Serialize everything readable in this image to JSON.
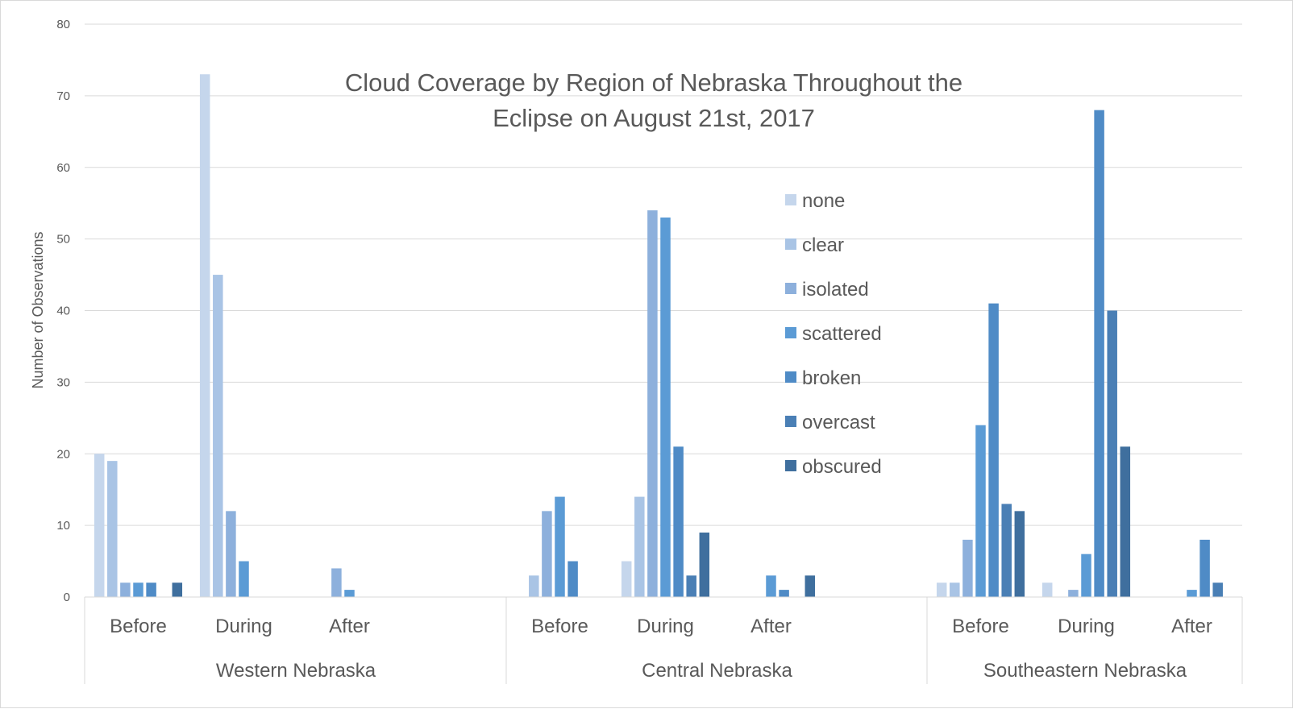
{
  "chart_data": {
    "type": "bar",
    "title_lines": [
      "Cloud Coverage by Region of Nebraska Throughout the",
      "Eclipse on August 21st, 2017"
    ],
    "ylabel": "Number of Observations",
    "xlabel": "",
    "ylim": [
      0,
      80
    ],
    "yticks": [
      0,
      10,
      20,
      30,
      40,
      50,
      60,
      70,
      80
    ],
    "grid": true,
    "legend_position": "center",
    "groups": [
      "Western Nebraska",
      "Central Nebraska",
      "Southeastern Nebraska"
    ],
    "subcategories": [
      "Before",
      "During",
      "After"
    ],
    "series": [
      {
        "name": "none",
        "color": "#c5d6ec",
        "values": [
          [
            20,
            73,
            0
          ],
          [
            0,
            5,
            0
          ],
          [
            2,
            2,
            0
          ]
        ]
      },
      {
        "name": "clear",
        "color": "#a9c4e5",
        "values": [
          [
            19,
            45,
            0
          ],
          [
            3,
            14,
            0
          ],
          [
            2,
            0,
            0
          ]
        ]
      },
      {
        "name": "isolated",
        "color": "#8db0dc",
        "values": [
          [
            2,
            12,
            4
          ],
          [
            12,
            54,
            0
          ],
          [
            8,
            1,
            0
          ]
        ]
      },
      {
        "name": "scattered",
        "color": "#5b9bd5",
        "values": [
          [
            2,
            5,
            1
          ],
          [
            14,
            53,
            3
          ],
          [
            24,
            6,
            1
          ]
        ]
      },
      {
        "name": "broken",
        "color": "#4f8bc6",
        "values": [
          [
            2,
            0,
            0
          ],
          [
            5,
            21,
            1
          ],
          [
            41,
            68,
            8
          ]
        ]
      },
      {
        "name": "overcast",
        "color": "#4a7fb5",
        "values": [
          [
            0,
            0,
            0
          ],
          [
            0,
            3,
            0
          ],
          [
            13,
            40,
            2
          ]
        ]
      },
      {
        "name": "obscured",
        "color": "#3f6f9e",
        "values": [
          [
            2,
            0,
            0
          ],
          [
            0,
            9,
            3
          ],
          [
            12,
            21,
            0
          ]
        ]
      }
    ]
  }
}
